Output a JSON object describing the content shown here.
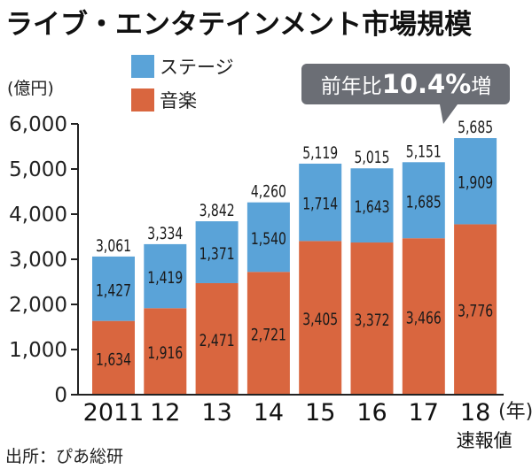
{
  "title": "ライブ・エンタテインメント市場規模",
  "source": "出所：ぴあ総研",
  "callout": {
    "prefix": "前年比",
    "value": "10.4%",
    "suffix": "増"
  },
  "colors": {
    "stage": "#5aa3d8",
    "music": "#d9663f",
    "callout_bg": "#6b6e75",
    "axis": "#222222"
  },
  "chart_data": {
    "type": "bar",
    "stacked": true,
    "categories": [
      "2011",
      "12",
      "13",
      "14",
      "15",
      "16",
      "17",
      "18"
    ],
    "category_sublabels": [
      "",
      "",
      "",
      "",
      "",
      "",
      "",
      "速報値"
    ],
    "x_unit": "(年)",
    "ylabel": "(億円)",
    "ylim": [
      0,
      6000
    ],
    "yticks": [
      0,
      1000,
      2000,
      3000,
      4000,
      5000,
      6000
    ],
    "ytick_labels": [
      "0",
      "1,000",
      "2,000",
      "3,000",
      "4,000",
      "5,000",
      "6,000"
    ],
    "series": [
      {
        "name": "音楽",
        "color": "#d9663f",
        "values": [
          1634,
          1916,
          2471,
          2721,
          3405,
          3372,
          3466,
          3776
        ],
        "labels": [
          "1,634",
          "1,916",
          "2,471",
          "2,721",
          "3,405",
          "3,372",
          "3,466",
          "3,776"
        ]
      },
      {
        "name": "ステージ",
        "color": "#5aa3d8",
        "values": [
          1427,
          1419,
          1371,
          1540,
          1714,
          1643,
          1685,
          1909
        ],
        "labels": [
          "1,427",
          "1,419",
          "1,371",
          "1,540",
          "1,714",
          "1,643",
          "1,685",
          "1,909"
        ]
      }
    ],
    "totals": [
      3061,
      3334,
      3842,
      4260,
      5119,
      5015,
      5151,
      5685
    ],
    "total_labels": [
      "3,061",
      "3,334",
      "3,842",
      "4,260",
      "5,119",
      "5,015",
      "5,151",
      "5,685"
    ],
    "legend": {
      "placement": "top-left",
      "items": [
        "ステージ",
        "音楽"
      ]
    },
    "grid": false
  }
}
